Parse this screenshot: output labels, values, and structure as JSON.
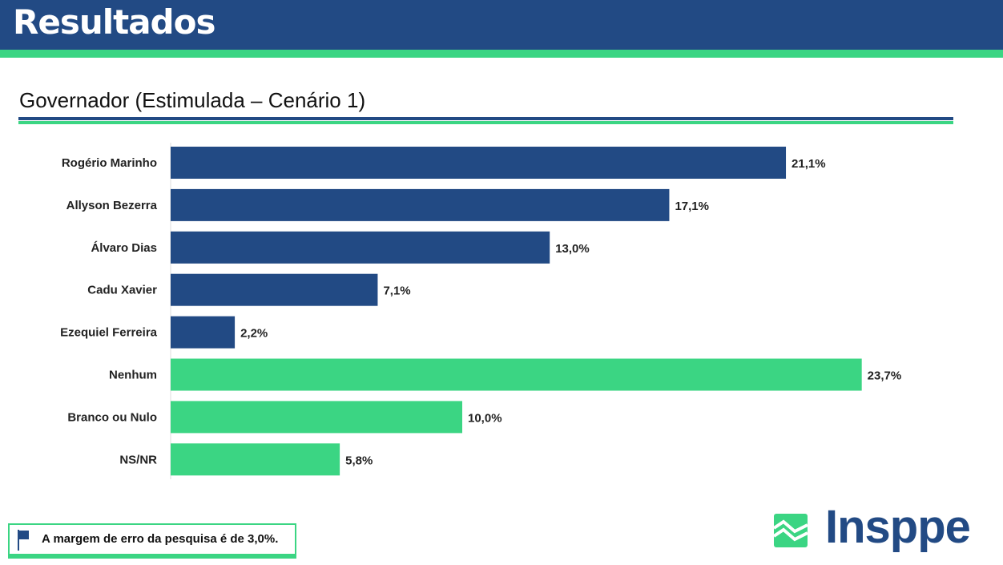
{
  "header": {
    "title": "Resultados"
  },
  "chart_data": {
    "type": "bar",
    "orientation": "horizontal",
    "title": "Governador (Estimulada – Cenário 1)",
    "categories": [
      "Rogério Marinho",
      "Allyson Bezerra",
      "Álvaro Dias",
      "Cadu Xavier",
      "Ezequiel Ferreira",
      "Nenhum",
      "Branco ou Nulo",
      "NS/NR"
    ],
    "values": [
      21.1,
      17.1,
      13.0,
      7.1,
      2.2,
      23.7,
      10.0,
      5.8
    ],
    "labels": [
      "21,1%",
      "17,1%",
      "13,0%",
      "7,1%",
      "2,2%",
      "23,7%",
      "10,0%",
      "5,8%"
    ],
    "colors": [
      "#224a84",
      "#224a84",
      "#224a84",
      "#224a84",
      "#224a84",
      "#3bd583",
      "#3bd583",
      "#3bd583"
    ],
    "xlim": [
      0,
      25
    ],
    "grid": false
  },
  "footer": {
    "note": "A margem de erro da pesquisa é de 3,0%.",
    "logo": "Insppe"
  }
}
